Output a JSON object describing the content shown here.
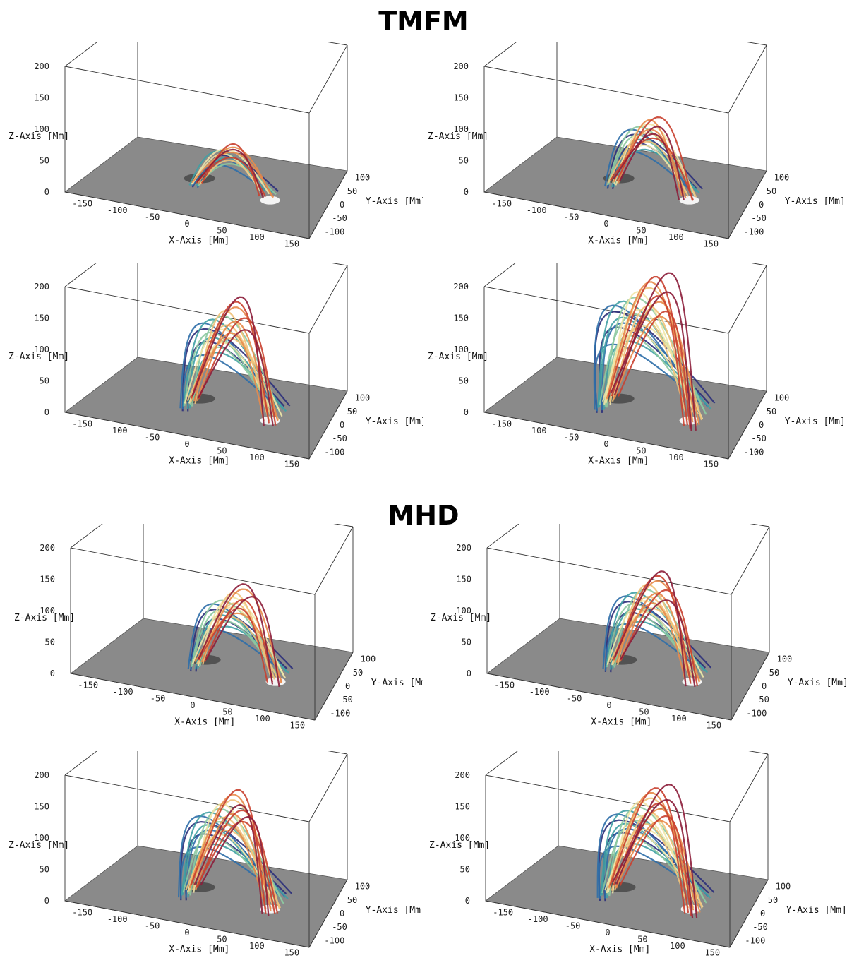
{
  "titles": {
    "top": "TMFM",
    "bottom": "MHD"
  },
  "axes": {
    "xlabel": "X-Axis [Mm]",
    "ylabel": "Y-Axis [Mm]",
    "zlabel": "Z-Axis [Mm]",
    "x_ticks": [
      "-150",
      "-100",
      "-50",
      "0",
      "50",
      "100",
      "150"
    ],
    "y_ticks": [
      "100",
      "50",
      "0",
      "-50",
      "-100"
    ],
    "z_ticks": [
      "200",
      "150",
      "100",
      "50",
      "0"
    ]
  },
  "colors": {
    "floor": "#8a8a8a",
    "fieldline_palette": [
      "#2b2f7a",
      "#2e6ea8",
      "#3fa0a4",
      "#8cc9a0",
      "#f1e6a6",
      "#efc27a",
      "#e8894a",
      "#c9402f",
      "#8c1d3a"
    ]
  },
  "panels": [
    {
      "id": "tmfm-1",
      "group": "TMFM",
      "loop_height": 65,
      "loop_spread": 0.35,
      "strand_count": 14
    },
    {
      "id": "tmfm-2",
      "group": "TMFM",
      "loop_height": 105,
      "loop_spread": 0.6,
      "strand_count": 18
    },
    {
      "id": "tmfm-3",
      "group": "TMFM",
      "loop_height": 155,
      "loop_spread": 0.95,
      "strand_count": 22
    },
    {
      "id": "tmfm-4",
      "group": "TMFM",
      "loop_height": 190,
      "loop_spread": 1.25,
      "strand_count": 26
    },
    {
      "id": "mhd-1",
      "group": "MHD",
      "loop_height": 120,
      "loop_spread": 0.8,
      "strand_count": 20
    },
    {
      "id": "mhd-2",
      "group": "MHD",
      "loop_height": 135,
      "loop_spread": 0.9,
      "strand_count": 22
    },
    {
      "id": "mhd-3",
      "group": "MHD",
      "loop_height": 150,
      "loop_spread": 1.05,
      "strand_count": 24
    },
    {
      "id": "mhd-4",
      "group": "MHD",
      "loop_height": 155,
      "loop_spread": 1.15,
      "strand_count": 26
    }
  ]
}
